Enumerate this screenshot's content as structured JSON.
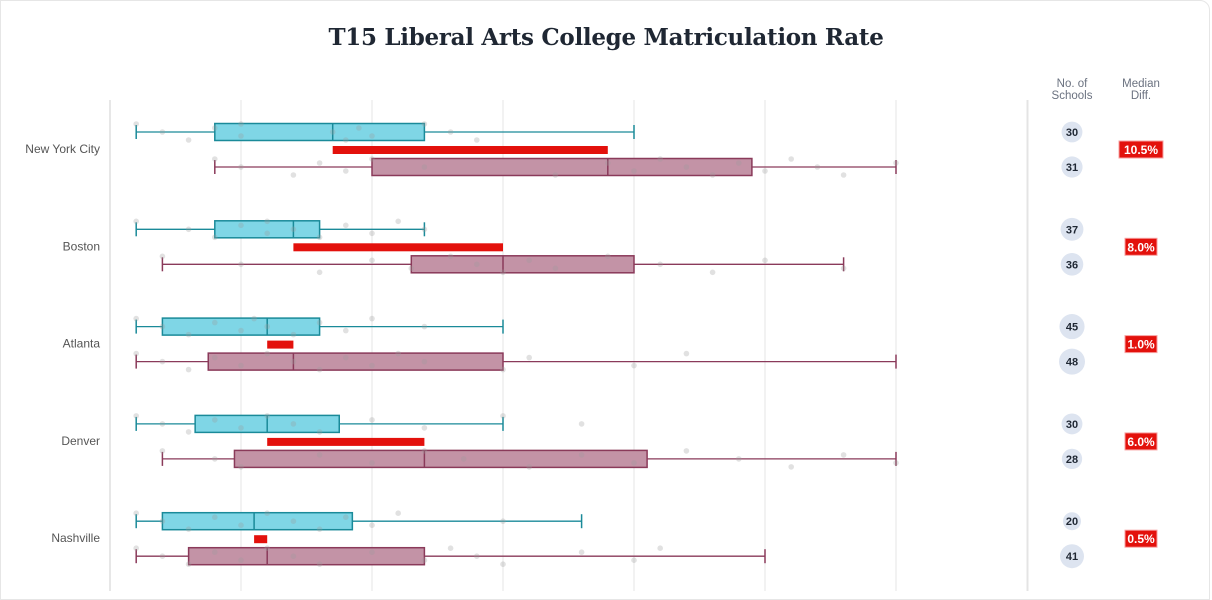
{
  "chart_data": {
    "type": "boxplot",
    "title": "T15 Liberal Arts College Matriculation Rate",
    "xlabel": "",
    "ylabel": "",
    "xlim": [
      0,
      35
    ],
    "grid": true,
    "x_gridlines": [
      0,
      5,
      10,
      15,
      20,
      25,
      30,
      35
    ],
    "colors": {
      "series_a_fill": "#7fd6e6",
      "series_a_stroke": "#1a8a99",
      "series_b_fill": "#c393a6",
      "series_b_stroke": "#8a3a5a",
      "median_diff": "#e3110c",
      "points": "#9a9a9a"
    },
    "columns": {
      "count_header_line1": "No. of",
      "count_header_line2": "Schools",
      "diff_header_line1": "Median",
      "diff_header_line2": "Diff."
    },
    "categories": [
      "New York City",
      "Boston",
      "Atlanta",
      "Denver",
      "Nashville"
    ],
    "rows": [
      {
        "city": "New York City",
        "median_diff": "10.5%",
        "a": {
          "count": "30",
          "min": 1.0,
          "q1": 4.0,
          "median": 8.5,
          "q3": 12.0,
          "max": 20.0,
          "points": [
            1,
            2,
            3,
            4,
            5,
            5,
            8.5,
            9,
            9.5,
            10,
            12,
            13,
            14
          ]
        },
        "b": {
          "count": "31",
          "min": 4.0,
          "q1": 10.0,
          "median": 19.0,
          "q3": 24.5,
          "max": 30.0,
          "points": [
            4,
            5,
            7,
            8,
            9,
            10,
            12,
            17,
            19,
            20,
            21,
            22,
            23,
            24,
            25,
            26,
            27,
            28,
            30
          ]
        }
      },
      {
        "city": "Boston",
        "median_diff": "8.0%",
        "a": {
          "count": "37",
          "min": 1.0,
          "q1": 4.0,
          "median": 7.0,
          "q3": 8.0,
          "max": 12.0,
          "points": [
            1,
            3,
            4,
            5,
            6,
            6,
            7,
            8,
            9,
            10,
            11,
            12
          ]
        },
        "b": {
          "count": "36",
          "min": 2.0,
          "q1": 11.5,
          "median": 15.0,
          "q3": 20.0,
          "max": 28.0,
          "points": [
            2,
            5,
            8,
            10,
            11.5,
            13,
            14,
            15,
            16,
            17,
            19,
            21,
            23,
            25,
            28
          ]
        }
      },
      {
        "city": "Atlanta",
        "median_diff": "1.0%",
        "a": {
          "count": "45",
          "min": 1.0,
          "q1": 2.0,
          "median": 6.0,
          "q3": 8.0,
          "max": 15.0,
          "points": [
            1,
            2,
            3,
            4,
            5,
            5.5,
            6,
            7,
            8,
            9,
            10,
            12
          ]
        },
        "b": {
          "count": "48",
          "min": 1.0,
          "q1": 3.75,
          "median": 7.0,
          "q3": 15.0,
          "max": 30.0,
          "points": [
            1,
            2,
            3,
            4,
            5,
            6,
            7,
            8,
            9,
            10,
            11,
            12,
            15,
            16,
            20,
            22
          ]
        }
      },
      {
        "city": "Denver",
        "median_diff": "6.0%",
        "a": {
          "count": "30",
          "min": 1.0,
          "q1": 3.25,
          "median": 6.0,
          "q3": 8.75,
          "max": 15.0,
          "points": [
            1,
            2,
            3,
            4,
            5,
            6,
            7,
            8,
            10,
            12,
            15,
            18
          ]
        },
        "b": {
          "count": "28",
          "min": 2.0,
          "q1": 4.75,
          "median": 12.0,
          "q3": 20.5,
          "max": 30.0,
          "points": [
            2,
            4,
            5,
            8,
            10,
            12,
            13.5,
            16,
            18,
            20,
            22,
            24,
            26,
            28,
            30
          ]
        }
      },
      {
        "city": "Nashville",
        "median_diff": "0.5%",
        "a": {
          "count": "20",
          "min": 1.0,
          "q1": 2.0,
          "median": 5.5,
          "q3": 9.25,
          "max": 18.0,
          "points": [
            1,
            2,
            3,
            4,
            5,
            6,
            7,
            8,
            9,
            10,
            11,
            15
          ]
        },
        "b": {
          "count": "41",
          "min": 1.0,
          "q1": 3.0,
          "median": 6.0,
          "q3": 12.0,
          "max": 25.0,
          "points": [
            1,
            2,
            3,
            4,
            5,
            6,
            7,
            8,
            10,
            12,
            13,
            14,
            15,
            18,
            20,
            21
          ]
        }
      }
    ]
  }
}
